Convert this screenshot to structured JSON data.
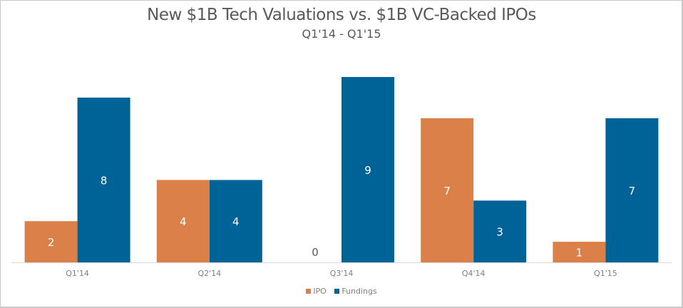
{
  "chart_data": {
    "type": "bar",
    "title": "New $1B Tech Valuations vs. $1B VC-Backed IPOs",
    "subtitle": "Q1'14 - Q1'15",
    "xlabel": "",
    "ylabel": "",
    "categories": [
      "Q1'14",
      "Q2'14",
      "Q3'14",
      "Q4'14",
      "Q1'15"
    ],
    "series": [
      {
        "name": "IPO",
        "color": "#DC804A",
        "values": [
          2,
          4,
          0,
          7,
          1
        ]
      },
      {
        "name": "Fundings",
        "color": "#006398",
        "values": [
          8,
          4,
          9,
          3,
          7
        ]
      }
    ],
    "ylim": [
      0,
      9
    ],
    "grid": false,
    "y_axis_visible": false,
    "data_labels": true,
    "legend_position": "bottom"
  }
}
